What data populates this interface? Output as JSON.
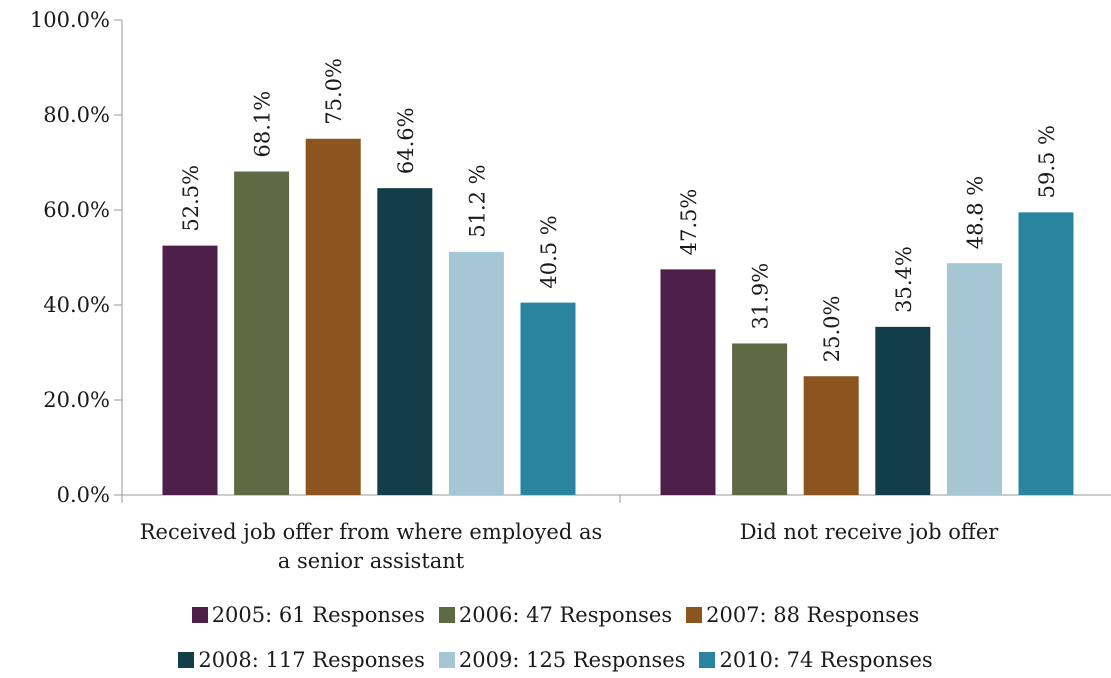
{
  "chart_data": {
    "type": "bar",
    "categories": [
      "Received job offer from where employed as a senior assistant",
      "Did not receive job offer"
    ],
    "category_lines": [
      [
        "Received job offer from where employed as",
        "a senior assistant"
      ],
      [
        "Did not receive job offer"
      ]
    ],
    "series": [
      {
        "name": "2005: 61 Responses",
        "values": [
          52.5,
          47.5
        ],
        "labels": [
          "52.5%",
          "47.5%"
        ],
        "color": "#4e1f49"
      },
      {
        "name": "2006: 47 Responses",
        "values": [
          68.1,
          31.9
        ],
        "labels": [
          "68.1%",
          "31.9%"
        ],
        "color": "#5f6a45"
      },
      {
        "name": "2007: 88 Responses",
        "values": [
          75.0,
          25.0
        ],
        "labels": [
          "75.0%",
          "25.0%"
        ],
        "color": "#8c541e"
      },
      {
        "name": "2008: 117 Responses",
        "values": [
          64.6,
          35.4
        ],
        "labels": [
          "64.6%",
          "35.4%"
        ],
        "color": "#143d4a"
      },
      {
        "name": "2009: 125 Responses",
        "values": [
          51.2,
          48.8
        ],
        "labels": [
          "51.2 %",
          "48.8 %"
        ],
        "color": "#a5c7d3"
      },
      {
        "name": "2010: 74 Responses",
        "values": [
          40.5,
          59.5
        ],
        "labels": [
          "40.5 %",
          "59.5 %"
        ],
        "color": "#28849f"
      }
    ],
    "ylim": [
      0,
      100
    ],
    "yticks": [
      "0.0%",
      "20.0%",
      "40.0%",
      "60.0%",
      "80.0%",
      "100.0%"
    ],
    "grid": false,
    "legend_position": "bottom"
  }
}
